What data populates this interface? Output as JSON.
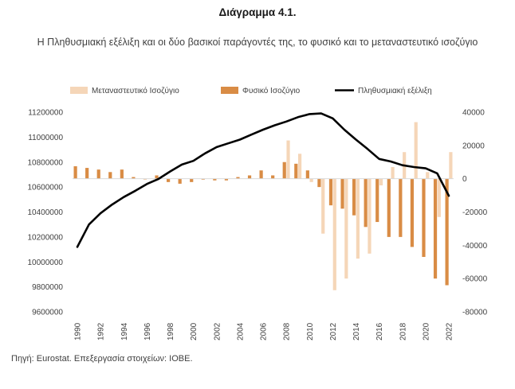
{
  "header": {
    "title": "Διάγραμμα 4.1.",
    "subtitle": "Η Πληθυσμιακή εξέλιξη και οι δύο βασικοί παράγοντές της, το φυσικό και το μεταναστευτικό ισοζύγιο"
  },
  "footer": {
    "source": "Πηγή: Eurostat. Επεξεργασία στοιχείων: ΙΟΒΕ."
  },
  "chart_data": {
    "type": "bar+line",
    "categories": [
      "1990",
      "1991",
      "1992",
      "1993",
      "1994",
      "1995",
      "1996",
      "1997",
      "1998",
      "1999",
      "2000",
      "2001",
      "2002",
      "2003",
      "2004",
      "2005",
      "2006",
      "2007",
      "2008",
      "2009",
      "2010",
      "2011",
      "2012",
      "2013",
      "2014",
      "2015",
      "2016",
      "2017",
      "2018",
      "2019",
      "2020",
      "2021",
      "2022"
    ],
    "x_tick_labels": [
      "1990",
      "1992",
      "1994",
      "1996",
      "1998",
      "2000",
      "2002",
      "2004",
      "2006",
      "2008",
      "2010",
      "2012",
      "2014",
      "2016",
      "2018",
      "2020",
      "2022"
    ],
    "left_axis": {
      "min": 9600000,
      "max": 11200000,
      "step": 200000,
      "tick_labels": [
        "9600000",
        "9800000",
        "10000000",
        "10200000",
        "10400000",
        "10600000",
        "10800000",
        "11000000",
        "11200000"
      ]
    },
    "right_axis": {
      "min": -80000,
      "max": 40000,
      "step": 20000,
      "tick_labels": [
        "-80000",
        "-60000",
        "-40000",
        "-20000",
        "0",
        "20000",
        "40000"
      ]
    },
    "legend_position": "top",
    "series": [
      {
        "name": "Μεταναστευτικό Ισοζύγιο",
        "type": "bar",
        "axis": "right",
        "color": "#f5d6b8",
        "values": [
          0,
          0,
          0,
          0,
          0,
          0,
          0,
          0,
          0,
          0,
          0,
          0,
          0,
          0,
          0,
          0,
          0,
          0,
          23000,
          15000,
          -2000,
          -33000,
          -67000,
          -60000,
          -48000,
          -45000,
          -4000,
          7000,
          16000,
          34000,
          4000,
          -23000,
          16000
        ]
      },
      {
        "name": "Φυσικό Ισοζύγιο",
        "type": "bar",
        "axis": "right",
        "color": "#d98c45",
        "values": [
          7500,
          6500,
          5500,
          4000,
          5500,
          1000,
          -400,
          2000,
          -2000,
          -3000,
          -2000,
          -500,
          -1000,
          -1000,
          1000,
          2000,
          5000,
          2000,
          10000,
          9000,
          5000,
          -5000,
          -16000,
          -18000,
          -22000,
          -29000,
          -26000,
          -35000,
          -35000,
          -41000,
          -47000,
          -60000,
          -64000
        ]
      },
      {
        "name": "Πληθυσμιακή εξέλιξη",
        "type": "line",
        "axis": "left",
        "color": "#000000",
        "values": [
          10120000,
          10300000,
          10390000,
          10460000,
          10520000,
          10570000,
          10625000,
          10665000,
          10725000,
          10780000,
          10810000,
          10870000,
          10920000,
          10950000,
          10980000,
          11020000,
          11060000,
          11095000,
          11125000,
          11160000,
          11185000,
          11190000,
          11150000,
          11060000,
          10980000,
          10905000,
          10825000,
          10805000,
          10775000,
          10760000,
          10750000,
          10710000,
          10530000
        ]
      }
    ]
  }
}
